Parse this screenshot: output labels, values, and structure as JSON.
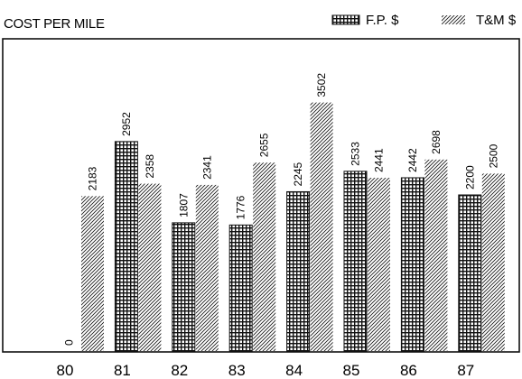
{
  "chart_data": {
    "type": "bar",
    "title": "COST PER MILE",
    "categories": [
      "80",
      "81",
      "82",
      "83",
      "84",
      "85",
      "86",
      "87"
    ],
    "series": [
      {
        "name": "F.P. $",
        "pattern": "crosshatch",
        "values": [
          0,
          2952,
          1807,
          1776,
          2245,
          2533,
          2442,
          2200
        ]
      },
      {
        "name": "T&M $",
        "pattern": "diagonal",
        "values": [
          2183,
          2358,
          2341,
          2655,
          3502,
          2441,
          2698,
          2500
        ]
      }
    ],
    "value_labels": {
      "fp": [
        "0",
        "2952",
        "1807",
        "1776",
        "2245",
        "2533",
        "2442",
        "2200"
      ],
      "tm": [
        "2183",
        "2358",
        "2341",
        "2655",
        "3502",
        "2441",
        "2698",
        "2500"
      ]
    },
    "ylim": [
      0,
      4400
    ],
    "grid": false,
    "legend_position": "top-right",
    "colors": {
      "ink": "#111111",
      "background": "#ffffff"
    }
  }
}
